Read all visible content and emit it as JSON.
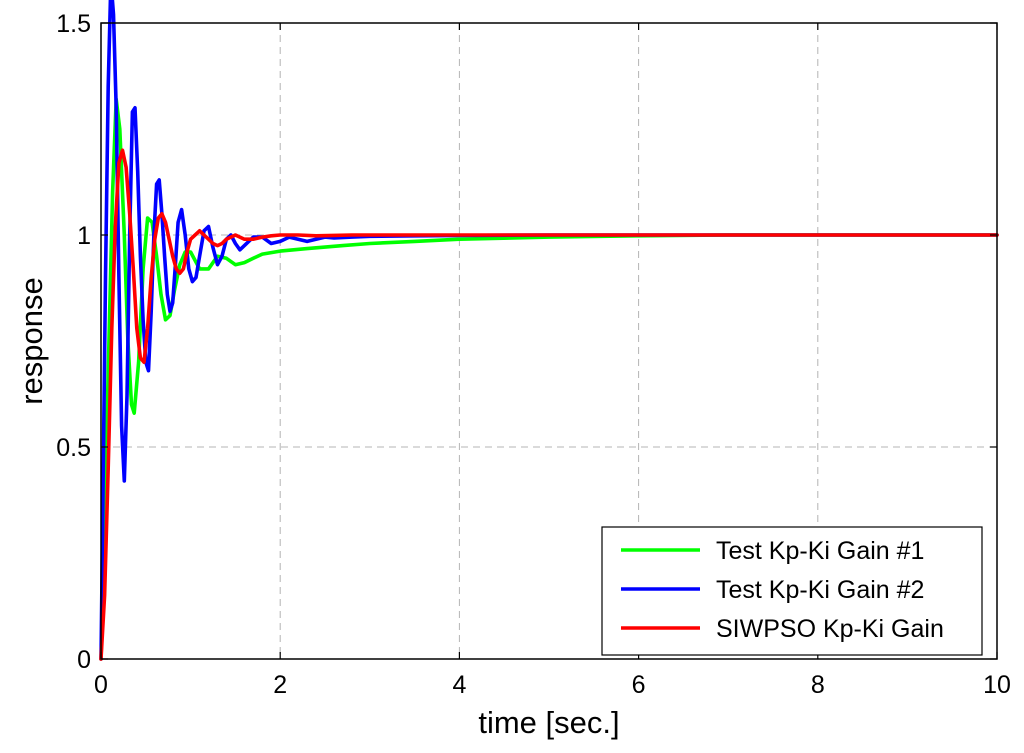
{
  "chart_data": {
    "type": "line",
    "title": "",
    "xlabel": "time [sec.]",
    "ylabel": "response",
    "xlim": [
      0,
      10
    ],
    "ylim": [
      0,
      1.5
    ],
    "xticks": [
      0,
      2,
      4,
      6,
      8,
      10
    ],
    "xtick_labels": [
      "0",
      "2",
      "4",
      "6",
      "8",
      "10"
    ],
    "yticks": [
      0,
      0.5,
      1,
      1.5
    ],
    "ytick_labels": [
      "0",
      "0.5",
      "1",
      "1.5"
    ],
    "grid": true,
    "legend_position": "bottom-right",
    "series": [
      {
        "name": "Test Kp-Ki Gain #1",
        "color": "#00ff00",
        "x": [
          0,
          0.03,
          0.06,
          0.1,
          0.13,
          0.17,
          0.21,
          0.26,
          0.3,
          0.34,
          0.37,
          0.42,
          0.47,
          0.52,
          0.57,
          0.62,
          0.67,
          0.72,
          0.77,
          0.82,
          0.88,
          0.94,
          1.0,
          1.1,
          1.2,
          1.3,
          1.4,
          1.5,
          1.6,
          1.7,
          1.8,
          2.0,
          2.3,
          2.7,
          3.0,
          3.5,
          4.0,
          5.0,
          6.0,
          7.0,
          8.0,
          9.0,
          10.0
        ],
        "y": [
          0.0,
          0.2,
          0.5,
          0.85,
          1.1,
          1.32,
          1.25,
          1.0,
          0.75,
          0.6,
          0.58,
          0.7,
          0.92,
          1.04,
          1.03,
          0.95,
          0.86,
          0.8,
          0.81,
          0.87,
          0.93,
          0.96,
          0.96,
          0.92,
          0.92,
          0.95,
          0.945,
          0.93,
          0.935,
          0.945,
          0.955,
          0.962,
          0.968,
          0.975,
          0.98,
          0.985,
          0.99,
          0.995,
          0.998,
          1.0,
          1.0,
          1.0,
          1.0
        ]
      },
      {
        "name": "Test Kp-Ki Gain #2",
        "color": "#0000ff",
        "x": [
          0,
          0.02,
          0.05,
          0.08,
          0.11,
          0.14,
          0.17,
          0.2,
          0.23,
          0.26,
          0.29,
          0.32,
          0.35,
          0.38,
          0.41,
          0.44,
          0.47,
          0.5,
          0.53,
          0.56,
          0.59,
          0.62,
          0.65,
          0.68,
          0.71,
          0.74,
          0.77,
          0.8,
          0.83,
          0.86,
          0.9,
          0.94,
          0.98,
          1.02,
          1.06,
          1.1,
          1.15,
          1.2,
          1.25,
          1.3,
          1.35,
          1.4,
          1.45,
          1.5,
          1.55,
          1.6,
          1.7,
          1.8,
          1.9,
          2.0,
          2.1,
          2.2,
          2.3,
          2.4,
          2.5,
          2.6,
          2.8,
          3.0,
          3.5,
          4.0,
          5.0,
          6.0,
          8.0,
          10.0
        ],
        "y": [
          0.0,
          0.35,
          0.9,
          1.35,
          1.6,
          1.52,
          1.3,
          0.9,
          0.55,
          0.42,
          0.62,
          1.0,
          1.29,
          1.3,
          1.15,
          0.95,
          0.8,
          0.7,
          0.68,
          0.82,
          1.0,
          1.12,
          1.13,
          1.05,
          0.95,
          0.86,
          0.82,
          0.84,
          0.93,
          1.03,
          1.06,
          1.0,
          0.92,
          0.89,
          0.9,
          0.95,
          1.01,
          1.02,
          0.97,
          0.93,
          0.95,
          0.99,
          1.0,
          0.98,
          0.965,
          0.975,
          0.995,
          0.995,
          0.98,
          0.985,
          0.995,
          0.99,
          0.985,
          0.99,
          0.995,
          0.993,
          0.995,
          0.997,
          0.998,
          0.999,
          1.0,
          1.0,
          1.0,
          1.0
        ]
      },
      {
        "name": "SIWPSO Kp-Ki Gain",
        "color": "#ff0000",
        "x": [
          0,
          0.04,
          0.08,
          0.12,
          0.16,
          0.2,
          0.24,
          0.28,
          0.32,
          0.36,
          0.4,
          0.44,
          0.48,
          0.52,
          0.56,
          0.6,
          0.64,
          0.68,
          0.72,
          0.76,
          0.8,
          0.84,
          0.88,
          0.92,
          0.96,
          1.0,
          1.05,
          1.1,
          1.15,
          1.2,
          1.25,
          1.3,
          1.35,
          1.4,
          1.45,
          1.5,
          1.55,
          1.6,
          1.7,
          1.8,
          1.9,
          2.0,
          2.2,
          2.4,
          2.6,
          2.8,
          3.0,
          4.0,
          6.0,
          8.0,
          10.0
        ],
        "y": [
          0.0,
          0.15,
          0.45,
          0.78,
          1.02,
          1.17,
          1.2,
          1.16,
          1.05,
          0.92,
          0.78,
          0.71,
          0.7,
          0.78,
          0.9,
          0.99,
          1.04,
          1.05,
          1.03,
          0.99,
          0.95,
          0.92,
          0.91,
          0.92,
          0.96,
          0.99,
          1.0,
          1.01,
          1.0,
          0.99,
          0.98,
          0.975,
          0.98,
          0.99,
          0.995,
          1.0,
          0.995,
          0.99,
          0.99,
          0.995,
          0.998,
          1.0,
          1.0,
          0.998,
          0.999,
          1.0,
          1.0,
          1.0,
          1.0,
          1.0,
          1.0
        ]
      }
    ]
  }
}
